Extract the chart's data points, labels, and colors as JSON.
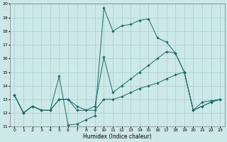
{
  "xlabel": "Humidex (Indice chaleur)",
  "xlim": [
    -0.5,
    23.5
  ],
  "ylim": [
    11,
    20
  ],
  "xticks": [
    0,
    1,
    2,
    3,
    4,
    5,
    6,
    7,
    8,
    9,
    10,
    11,
    12,
    13,
    14,
    15,
    16,
    17,
    18,
    19,
    20,
    21,
    22,
    23
  ],
  "yticks": [
    11,
    12,
    13,
    14,
    15,
    16,
    17,
    18,
    19,
    20
  ],
  "bg_color": "#cce8e8",
  "grid_color": "#aacccc",
  "line_color": "#1a6b6b",
  "line1_x": [
    0,
    1,
    2,
    3,
    4,
    5,
    6,
    7,
    8,
    9,
    10,
    11,
    12,
    13,
    14,
    15,
    16,
    17,
    18,
    19,
    20,
    21,
    22,
    23
  ],
  "line1_y": [
    13.3,
    12.0,
    12.5,
    12.2,
    12.2,
    14.7,
    11.1,
    11.2,
    11.5,
    11.8,
    19.7,
    18.0,
    18.4,
    18.5,
    18.8,
    18.9,
    17.5,
    17.2,
    16.4,
    15.0,
    12.2,
    12.8,
    12.9,
    13.0
  ],
  "line2_x": [
    0,
    1,
    2,
    3,
    4,
    5,
    6,
    7,
    8,
    9,
    10,
    11,
    12,
    13,
    14,
    15,
    16,
    17,
    18,
    19,
    20,
    21,
    22,
    23
  ],
  "line2_y": [
    13.3,
    12.0,
    12.5,
    12.2,
    12.2,
    13.0,
    13.0,
    12.5,
    12.2,
    12.5,
    16.1,
    13.5,
    14.0,
    14.5,
    15.0,
    15.5,
    16.0,
    16.5,
    16.4,
    15.0,
    12.2,
    12.5,
    12.8,
    13.0
  ],
  "line3_x": [
    0,
    1,
    2,
    3,
    4,
    5,
    6,
    7,
    8,
    9,
    10,
    11,
    12,
    13,
    14,
    15,
    16,
    17,
    18,
    19,
    20,
    21,
    22,
    23
  ],
  "line3_y": [
    13.3,
    12.0,
    12.5,
    12.2,
    12.2,
    13.0,
    13.0,
    12.2,
    12.2,
    12.2,
    13.0,
    13.0,
    13.2,
    13.5,
    13.8,
    14.0,
    14.2,
    14.5,
    14.8,
    15.0,
    12.2,
    12.5,
    12.8,
    13.0
  ],
  "figsize": [
    3.2,
    2.0
  ],
  "dpi": 100
}
